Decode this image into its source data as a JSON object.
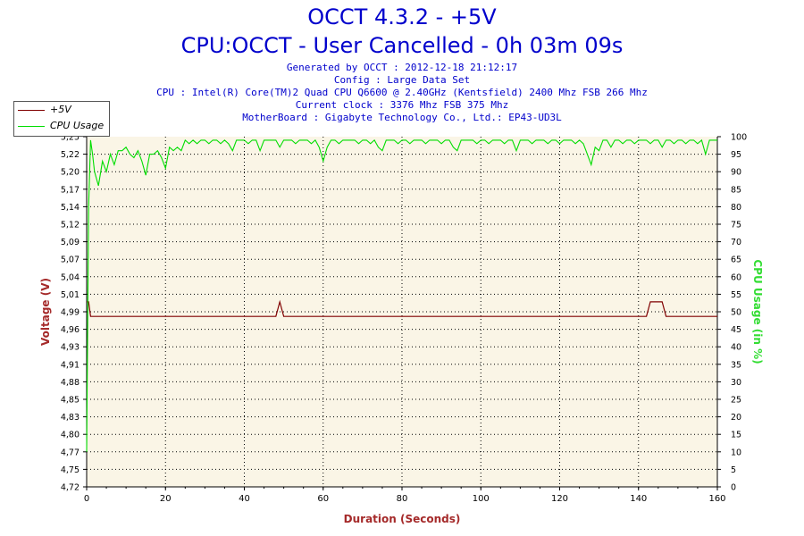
{
  "header": {
    "title": "OCCT 4.3.2 - +5V",
    "subtitle": "CPU:OCCT - User Cancelled - 0h 03m 09s",
    "info_lines": [
      "Generated by OCCT : 2012-12-18 21:12:17",
      "Config : Large Data Set",
      "CPU : Intel(R) Core(TM)2 Quad CPU Q6600 @ 2.40GHz (Kentsfield) 2400 Mhz FSB 266 Mhz",
      "Current clock : 3376 Mhz FSB 375 Mhz",
      "MotherBoard : Gigabyte Technology Co., Ltd.: EP43-UD3L"
    ]
  },
  "colors": {
    "voltage": "#800000",
    "cpu": "#00dd00",
    "plot_bg": "#faf5e6",
    "title": "#0000cc",
    "axis_title_left": "#a52a2a",
    "axis_title_right": "#33dd33"
  },
  "chart_data": {
    "type": "line",
    "xlabel": "Duration (Seconds)",
    "ylabel": "Voltage (V)",
    "y2label": "CPU Usage (in %)",
    "xlim": [
      0,
      160
    ],
    "ylim": [
      4.72,
      5.25
    ],
    "y2lim": [
      0,
      100
    ],
    "x_ticks": [
      "0",
      "20",
      "40",
      "60",
      "80",
      "100",
      "120",
      "140",
      "160"
    ],
    "y_ticks": [
      "4,72",
      "4,75",
      "4,77",
      "4,80",
      "4,83",
      "4,85",
      "4,88",
      "4,91",
      "4,93",
      "4,96",
      "4,99",
      "5,01",
      "5,04",
      "5,07",
      "5,09",
      "5,12",
      "5,14",
      "5,17",
      "5,20",
      "5,22",
      "5,25"
    ],
    "y2_ticks": [
      "0",
      "5",
      "10",
      "15",
      "20",
      "25",
      "30",
      "35",
      "40",
      "45",
      "50",
      "55",
      "60",
      "65",
      "70",
      "75",
      "80",
      "85",
      "90",
      "95",
      "100"
    ],
    "grid": true,
    "legend_position": "top-left",
    "series": [
      {
        "name": "+5V",
        "axis": "left",
        "points": [
          [
            0,
            5.0
          ],
          [
            0.5,
            5.0
          ],
          [
            1,
            4.978
          ],
          [
            2,
            4.978
          ],
          [
            48,
            4.978
          ],
          [
            49,
            5.0
          ],
          [
            50,
            4.978
          ],
          [
            142,
            4.978
          ],
          [
            143,
            5.0
          ],
          [
            146,
            5.0
          ],
          [
            147,
            4.978
          ],
          [
            160,
            4.978
          ]
        ]
      },
      {
        "name": "CPU Usage",
        "axis": "right",
        "points": [
          [
            0,
            10
          ],
          [
            0.5,
            80
          ],
          [
            1,
            99
          ],
          [
            1.5,
            95
          ],
          [
            2,
            90
          ],
          [
            3,
            86
          ],
          [
            4,
            93
          ],
          [
            5,
            90
          ],
          [
            6,
            95
          ],
          [
            7,
            92
          ],
          [
            8,
            96
          ],
          [
            9,
            96
          ],
          [
            10,
            97
          ],
          [
            11,
            95
          ],
          [
            12,
            94
          ],
          [
            13,
            96
          ],
          [
            14,
            93
          ],
          [
            15,
            89
          ],
          [
            16,
            95
          ],
          [
            17,
            95
          ],
          [
            18,
            96
          ],
          [
            19,
            94
          ],
          [
            20,
            91
          ],
          [
            21,
            97
          ],
          [
            22,
            96
          ],
          [
            23,
            97
          ],
          [
            24,
            96
          ],
          [
            25,
            99
          ],
          [
            26,
            98
          ],
          [
            27,
            99
          ],
          [
            28,
            98
          ],
          [
            29,
            99
          ],
          [
            30,
            99
          ],
          [
            31,
            98
          ],
          [
            32,
            99
          ],
          [
            33,
            99
          ],
          [
            34,
            98
          ],
          [
            35,
            99
          ],
          [
            36,
            98
          ],
          [
            37,
            96
          ],
          [
            38,
            99
          ],
          [
            39,
            99
          ],
          [
            40,
            99
          ],
          [
            41,
            98
          ],
          [
            42,
            99
          ],
          [
            43,
            99
          ],
          [
            44,
            96
          ],
          [
            45,
            99
          ],
          [
            46,
            99
          ],
          [
            47,
            99
          ],
          [
            48,
            99
          ],
          [
            49,
            97
          ],
          [
            50,
            99
          ],
          [
            51,
            99
          ],
          [
            52,
            99
          ],
          [
            53,
            98
          ],
          [
            54,
            99
          ],
          [
            55,
            99
          ],
          [
            56,
            99
          ],
          [
            57,
            98
          ],
          [
            58,
            99
          ],
          [
            59,
            97
          ],
          [
            60,
            93
          ],
          [
            61,
            97
          ],
          [
            62,
            99
          ],
          [
            63,
            99
          ],
          [
            64,
            98
          ],
          [
            65,
            99
          ],
          [
            66,
            99
          ],
          [
            67,
            99
          ],
          [
            68,
            99
          ],
          [
            69,
            98
          ],
          [
            70,
            99
          ],
          [
            71,
            99
          ],
          [
            72,
            98
          ],
          [
            73,
            99
          ],
          [
            74,
            97
          ],
          [
            75,
            96
          ],
          [
            76,
            99
          ],
          [
            77,
            99
          ],
          [
            78,
            99
          ],
          [
            79,
            98
          ],
          [
            80,
            99
          ],
          [
            81,
            99
          ],
          [
            82,
            98
          ],
          [
            83,
            99
          ],
          [
            84,
            99
          ],
          [
            85,
            99
          ],
          [
            86,
            98
          ],
          [
            87,
            99
          ],
          [
            88,
            99
          ],
          [
            89,
            99
          ],
          [
            90,
            98
          ],
          [
            91,
            99
          ],
          [
            92,
            99
          ],
          [
            93,
            97
          ],
          [
            94,
            96
          ],
          [
            95,
            99
          ],
          [
            96,
            99
          ],
          [
            97,
            99
          ],
          [
            98,
            99
          ],
          [
            99,
            98
          ],
          [
            100,
            99
          ],
          [
            101,
            99
          ],
          [
            102,
            98
          ],
          [
            103,
            99
          ],
          [
            104,
            99
          ],
          [
            105,
            99
          ],
          [
            106,
            98
          ],
          [
            107,
            99
          ],
          [
            108,
            99
          ],
          [
            109,
            96
          ],
          [
            110,
            99
          ],
          [
            111,
            99
          ],
          [
            112,
            99
          ],
          [
            113,
            98
          ],
          [
            114,
            99
          ],
          [
            115,
            99
          ],
          [
            116,
            99
          ],
          [
            117,
            98
          ],
          [
            118,
            99
          ],
          [
            119,
            99
          ],
          [
            120,
            98
          ],
          [
            121,
            99
          ],
          [
            122,
            99
          ],
          [
            123,
            99
          ],
          [
            124,
            98
          ],
          [
            125,
            99
          ],
          [
            126,
            98
          ],
          [
            127,
            95
          ],
          [
            128,
            92
          ],
          [
            129,
            97
          ],
          [
            130,
            96
          ],
          [
            131,
            99
          ],
          [
            132,
            99
          ],
          [
            133,
            97
          ],
          [
            134,
            99
          ],
          [
            135,
            99
          ],
          [
            136,
            98
          ],
          [
            137,
            99
          ],
          [
            138,
            99
          ],
          [
            139,
            98
          ],
          [
            140,
            99
          ],
          [
            141,
            99
          ],
          [
            142,
            99
          ],
          [
            143,
            98
          ],
          [
            144,
            99
          ],
          [
            145,
            99
          ],
          [
            146,
            97
          ],
          [
            147,
            99
          ],
          [
            148,
            99
          ],
          [
            149,
            98
          ],
          [
            150,
            99
          ],
          [
            151,
            99
          ],
          [
            152,
            98
          ],
          [
            153,
            99
          ],
          [
            154,
            99
          ],
          [
            155,
            98
          ],
          [
            156,
            99
          ],
          [
            157,
            95
          ],
          [
            158,
            99
          ],
          [
            159,
            99
          ],
          [
            160,
            99
          ]
        ]
      }
    ]
  }
}
